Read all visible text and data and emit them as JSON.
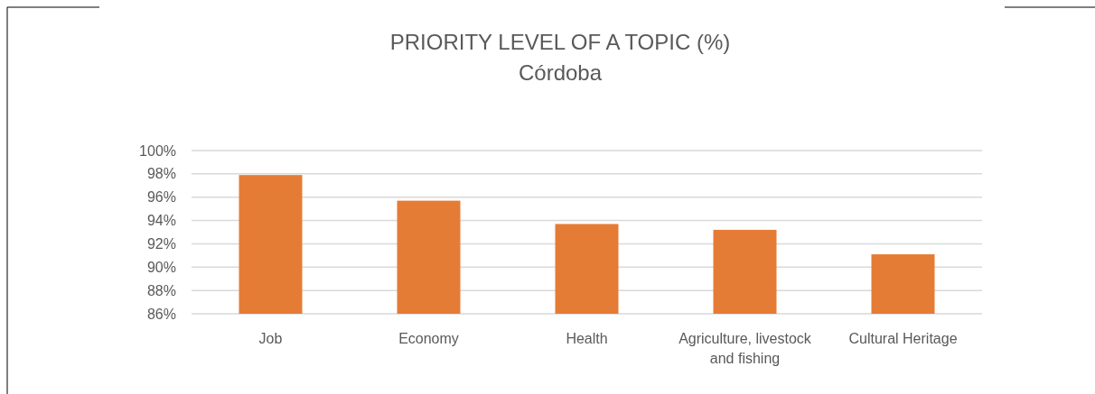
{
  "chart_data": {
    "type": "bar",
    "title": "PRIORITY LEVEL OF A TOPIC (%)",
    "subtitle": "Córdoba",
    "categories": [
      "Job",
      "Economy",
      "Health",
      "Agriculture, livestock and fishing",
      "Cultural Heritage"
    ],
    "values": [
      97.9,
      95.7,
      93.7,
      93.2,
      91.1
    ],
    "color": "#e57c36",
    "ylim": [
      86,
      100
    ],
    "yticks": [
      {
        "value": 86,
        "label": "86%"
      },
      {
        "value": 88,
        "label": "88%"
      },
      {
        "value": 90,
        "label": "90%"
      },
      {
        "value": 92,
        "label": "92%"
      },
      {
        "value": 94,
        "label": "94%"
      },
      {
        "value": 96,
        "label": "96%"
      },
      {
        "value": 98,
        "label": "98%"
      },
      {
        "value": 100,
        "label": "100%"
      }
    ],
    "grid": "y"
  }
}
